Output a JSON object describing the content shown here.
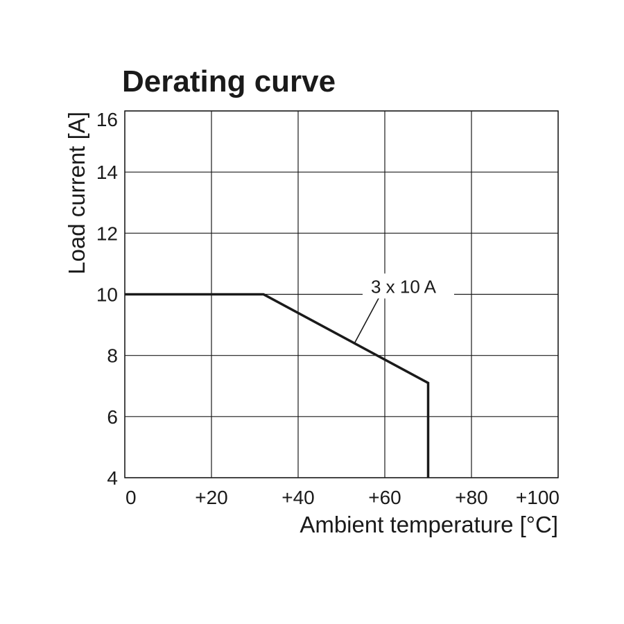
{
  "chart_data": {
    "type": "line",
    "title": "Derating curve",
    "xlabel": "Ambient temperature [°C]",
    "ylabel": "Load current [A]",
    "xlim": [
      0,
      100
    ],
    "ylim": [
      4,
      16
    ],
    "x_ticks": [
      0,
      20,
      40,
      60,
      80,
      100
    ],
    "x_tick_labels": [
      "0",
      "+20",
      "+40",
      "+60",
      "+80",
      "+100"
    ],
    "y_ticks": [
      4,
      6,
      8,
      10,
      12,
      14,
      16
    ],
    "y_tick_labels": [
      "4",
      "6",
      "8",
      "10",
      "12",
      "14",
      "16"
    ],
    "grid": true,
    "series": [
      {
        "name": "3 x 10 A",
        "x": [
          0,
          32,
          70,
          70
        ],
        "y": [
          10,
          10,
          7.1,
          4
        ]
      }
    ],
    "annotations": [
      {
        "text": "3 x 10 A",
        "series": "3 x 10 A"
      }
    ]
  },
  "colors": {
    "line": "#1a1a1a",
    "grid": "#1a1a1a",
    "background": "#ffffff"
  }
}
